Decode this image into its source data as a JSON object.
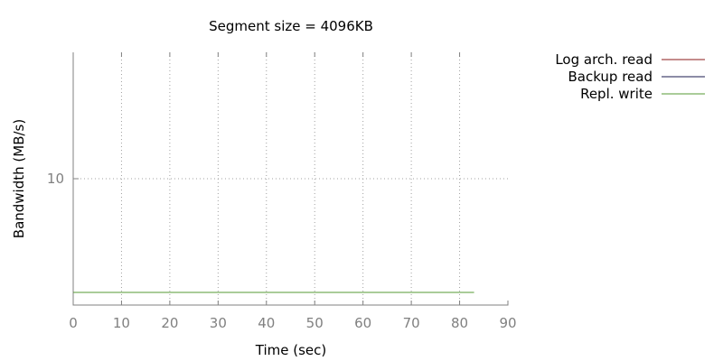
{
  "chart_data": {
    "type": "line",
    "title": "Segment size = 4096KB",
    "xlabel": "Time (sec)",
    "ylabel": "Bandwidth (MB/s)",
    "xlim": [
      0,
      90
    ],
    "ylim": [
      0,
      20
    ],
    "x_ticks": [
      0,
      10,
      20,
      30,
      40,
      50,
      60,
      70,
      80,
      90
    ],
    "y_ticks": [
      10
    ],
    "grid": true,
    "legend_position": "top-right outside",
    "series": [
      {
        "name": "Log arch. read",
        "color": "#8b1a1a",
        "x": [],
        "y": []
      },
      {
        "name": "Backup read",
        "color": "#1a1a4d",
        "x": [],
        "y": []
      },
      {
        "name": "Repl. write",
        "color": "#559933",
        "x": [
          0,
          83
        ],
        "y": [
          1,
          1
        ]
      }
    ]
  }
}
